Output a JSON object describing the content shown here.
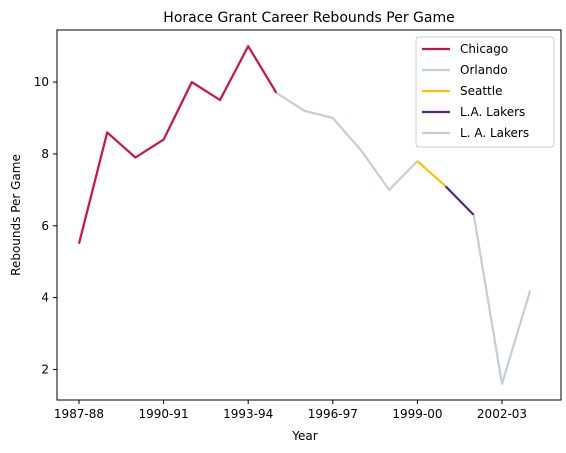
{
  "chart_data": {
    "type": "line",
    "title": "Horace Grant Career Rebounds Per Game",
    "xlabel": "Year",
    "ylabel": "Rebounds Per Game",
    "x": [
      "1987-88",
      "1988-89",
      "1989-90",
      "1990-91",
      "1991-92",
      "1992-93",
      "1993-94",
      "1994-95",
      "1995-96",
      "1996-97",
      "1997-98",
      "1998-99",
      "1999-00",
      "2000-01",
      "2001-02",
      "2002-03",
      "2003-04"
    ],
    "x_ticks": [
      "1987-88",
      "1990-91",
      "1993-94",
      "1996-97",
      "1999-00",
      "2002-03"
    ],
    "y_ticks": [
      2,
      4,
      6,
      8,
      10
    ],
    "ylim": [
      1.15,
      11.45
    ],
    "grid": false,
    "legend_position": "top-right",
    "series": [
      {
        "name": "Chicago",
        "color": "#CE1141",
        "x": [
          "1987-88",
          "1988-89",
          "1989-90",
          "1990-91",
          "1991-92",
          "1992-93",
          "1993-94",
          "1994-95"
        ],
        "values": [
          5.5,
          8.6,
          7.9,
          8.4,
          10.0,
          9.5,
          11.0,
          9.7
        ]
      },
      {
        "name": "Orlando",
        "color": "#C4CED4",
        "x": [
          "1994-95",
          "1995-96",
          "1996-97",
          "1997-98",
          "1998-99",
          "1999-00"
        ],
        "values": [
          9.7,
          9.2,
          9.0,
          8.1,
          7.0,
          7.8
        ]
      },
      {
        "name": "Seattle",
        "color": "#FFC200",
        "x": [
          "1999-00",
          "2000-01"
        ],
        "values": [
          7.8,
          7.1
        ]
      },
      {
        "name": "L.A. Lakers",
        "color": "#552583",
        "x": [
          "2000-01",
          "2001-02"
        ],
        "values": [
          7.1,
          6.3
        ]
      },
      {
        "name": "L. A. Lakers",
        "color": "#C4CED4",
        "x": [
          "2001-02",
          "2002-03",
          "2003-04"
        ],
        "values": [
          6.3,
          1.6,
          4.2
        ]
      }
    ]
  }
}
